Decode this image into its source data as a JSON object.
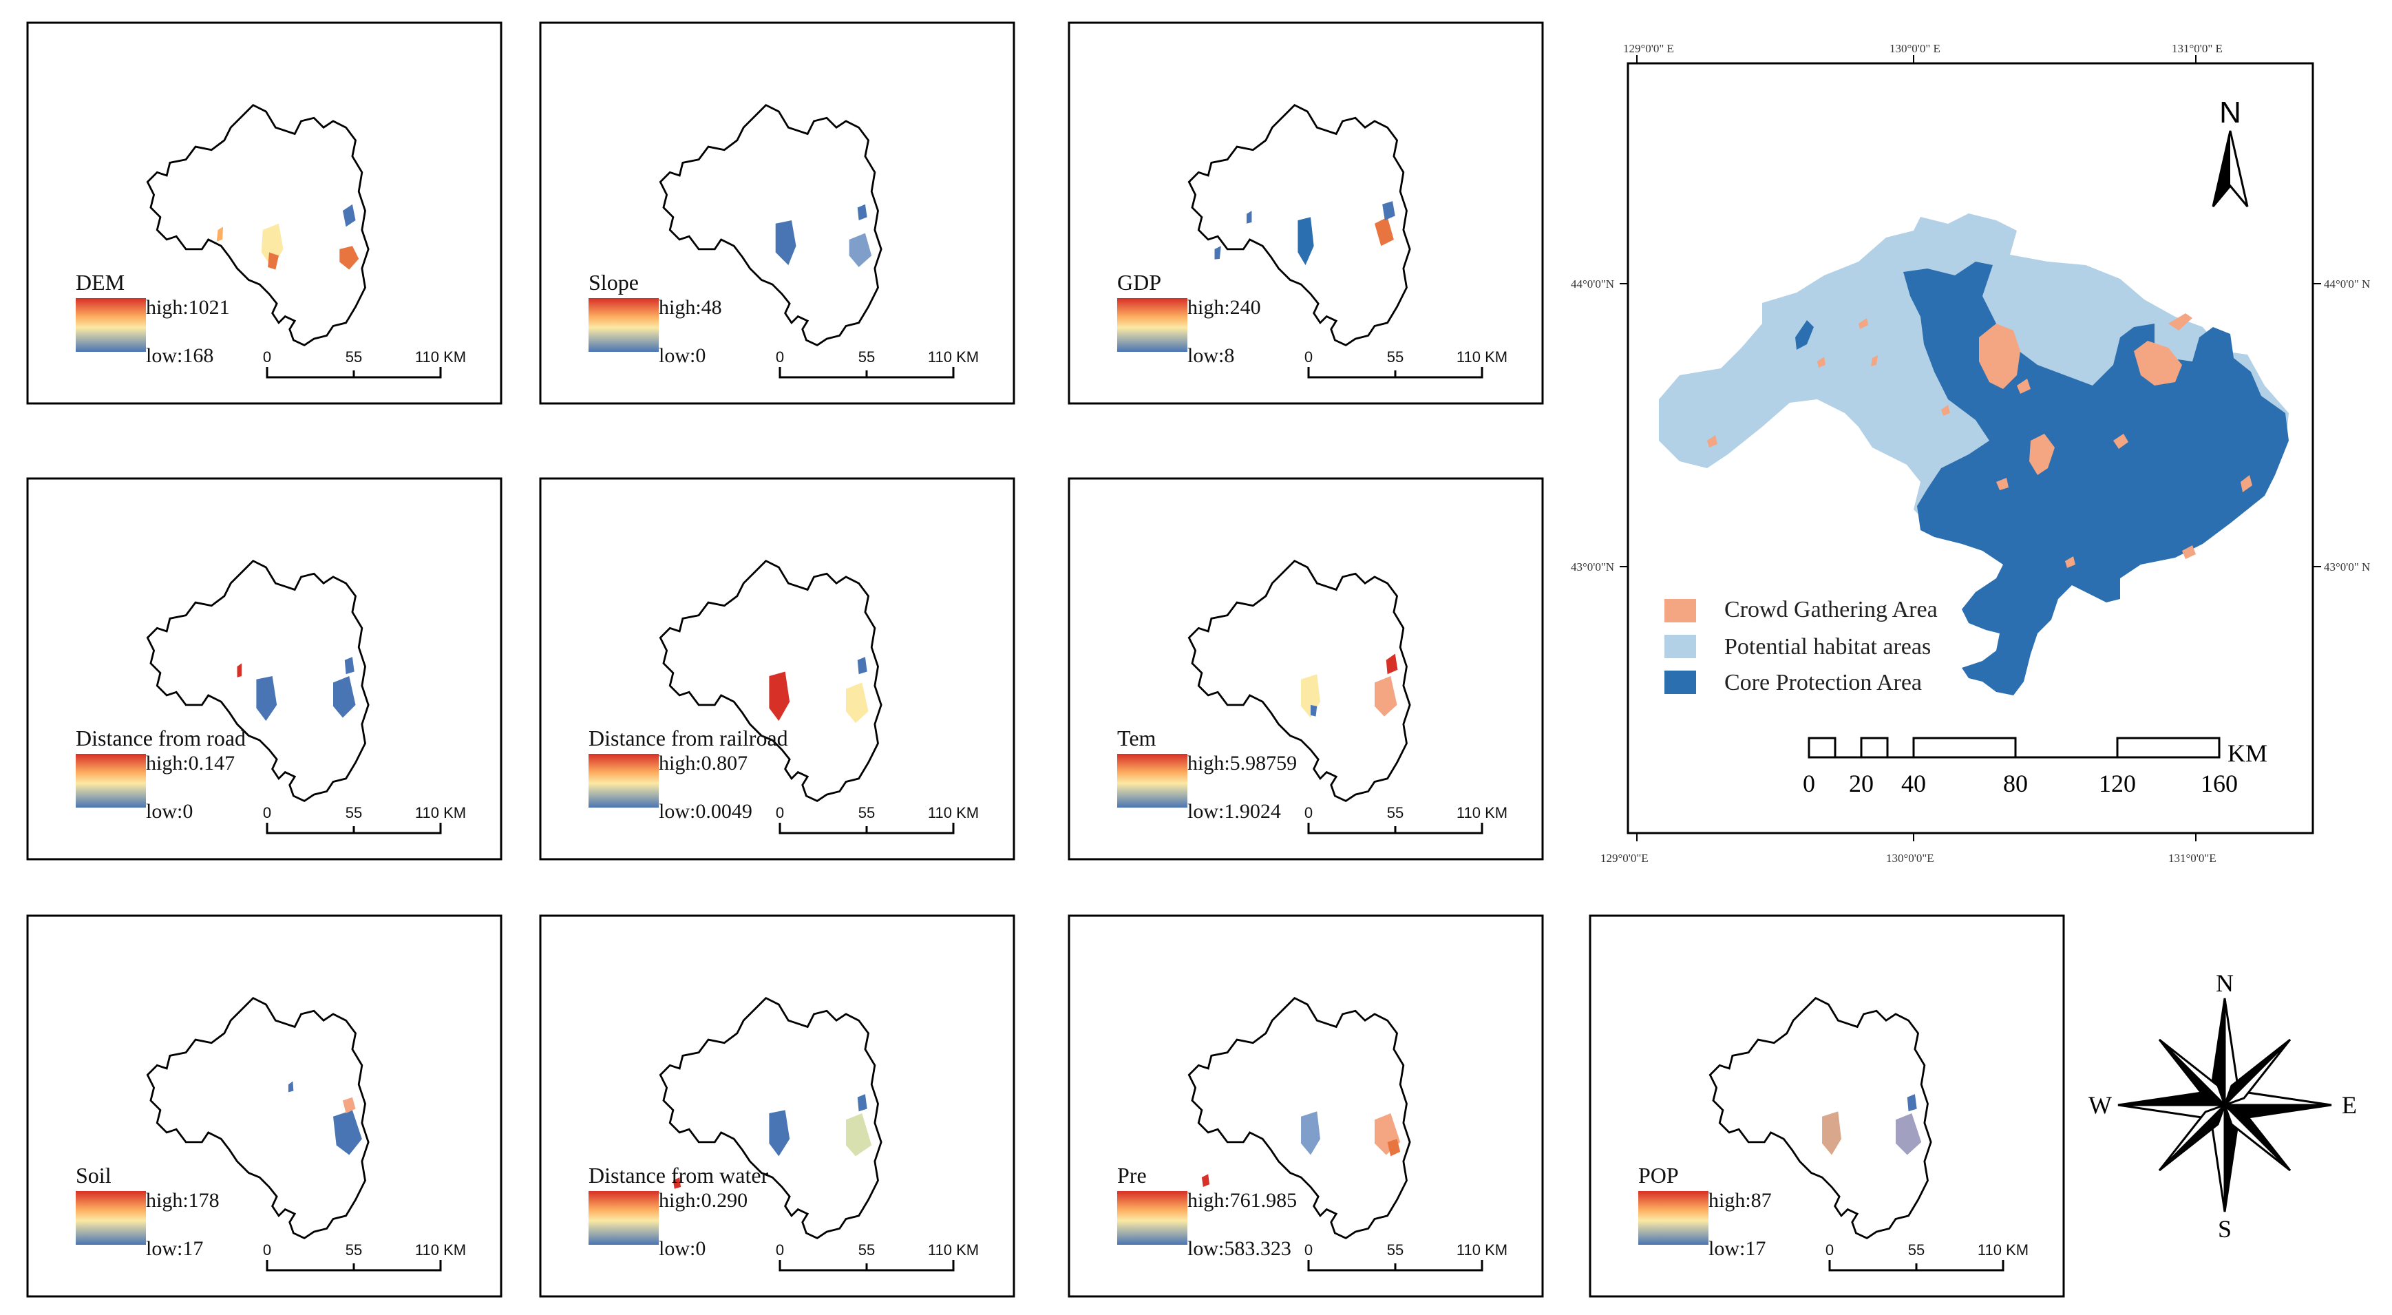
{
  "colors": {
    "ramp_high": "#d73027",
    "ramp_mid": "#fbe9a4",
    "ramp_low": "#4a75b4",
    "crowd": "#f4a582",
    "potential": "#b3d1e6",
    "core": "#2c6fb0",
    "outline": "#000000"
  },
  "scale_labels": [
    "0",
    "55",
    "110 KM"
  ],
  "panels": [
    {
      "id": "dem",
      "title": "DEM",
      "high": "high:1021",
      "low": "low:168"
    },
    {
      "id": "slope",
      "title": "Slope",
      "high": "high:48",
      "low": "low:0"
    },
    {
      "id": "gdp",
      "title": "GDP",
      "high": "high:240",
      "low": "low:8"
    },
    {
      "id": "road",
      "title": "Distance from road",
      "high": "high:0.147",
      "low": "low:0"
    },
    {
      "id": "railroad",
      "title": "Distance from railroad",
      "high": "high:0.807",
      "low": "low:0.0049"
    },
    {
      "id": "tem",
      "title": "Tem",
      "high": "high:5.98759",
      "low": "low:1.9024"
    },
    {
      "id": "soil",
      "title": "Soil",
      "high": "high:178",
      "low": "low:17"
    },
    {
      "id": "water",
      "title": "Distance from water",
      "high": "high:0.290",
      "low": "low:0"
    },
    {
      "id": "pre",
      "title": "Pre",
      "high": "high:761.985",
      "low": "low:583.323"
    },
    {
      "id": "pop",
      "title": "POP",
      "high": "high:87",
      "low": "low:17"
    }
  ],
  "main_map": {
    "top_ticks": [
      "129°0'0\" E",
      "130°0'0\" E",
      "131°0'0\" E"
    ],
    "bottom_ticks": [
      "129°0'0\"E",
      "130°0'0\"E",
      "131°0'0\"E"
    ],
    "left_ticks": [
      "44°0'0\"N",
      "43°0'0\"N"
    ],
    "right_ticks": [
      "44°0'0\" N",
      "43°0'0\" N"
    ],
    "north_label": "N",
    "legend": [
      {
        "label": "Crowd Gathering Area",
        "color": "crowd"
      },
      {
        "label": "Potential habitat areas",
        "color": "potential"
      },
      {
        "label": "Core Protection Area",
        "color": "core"
      }
    ],
    "scale_labels": [
      "0",
      "20",
      "40",
      "80",
      "120",
      "160"
    ],
    "scale_unit": "KM"
  },
  "compass": {
    "n": "N",
    "s": "S",
    "e": "E",
    "w": "W"
  }
}
